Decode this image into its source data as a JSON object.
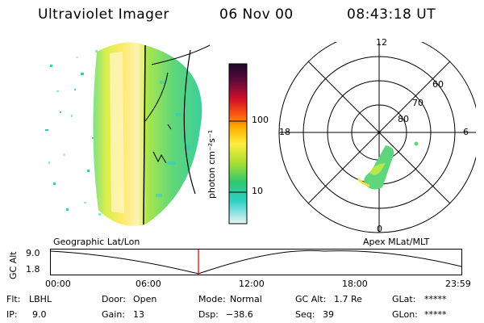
{
  "header": {
    "instrument": "Ultraviolet Imager",
    "date": "06 Nov 00",
    "time": "08:43:18 UT"
  },
  "colorbar": {
    "label": "photon cm⁻²s⁻¹",
    "ticks": [
      "100",
      "10"
    ]
  },
  "polar": {
    "mlt_labels": [
      "12",
      "18",
      "6",
      "0"
    ],
    "lat_labels": [
      "60",
      "70",
      "80"
    ]
  },
  "panels": {
    "left_caption": "Geographic Lat/Lon",
    "right_caption": "Apex MLat/MLT"
  },
  "altitude_plot": {
    "ylabel": "GC Alt",
    "yticks": [
      "9.0",
      "1.8"
    ],
    "xticks": [
      "00:00",
      "06:00",
      "12:00",
      "18:00",
      "23:59"
    ],
    "current_time_marker_color": "#cc0000"
  },
  "status": {
    "flt_label": "Flt:",
    "flt_value": "LBHL",
    "ip_label": "IP:",
    "ip_value": "9.0",
    "door_label": "Door:",
    "door_value": "Open",
    "gain_label": "Gain:",
    "gain_value": "13",
    "mode_label": "Mode:",
    "mode_value": "Normal",
    "dsp_label": "Dsp:",
    "dsp_value": "−38.6",
    "gcalt_label": "GC Alt:",
    "gcalt_value": "1.7 Re",
    "seq_label": "Seq:",
    "seq_value": "39",
    "glat_label": "GLat:",
    "glat_value": "*****",
    "glon_label": "GLon:",
    "glon_value": "*****"
  }
}
